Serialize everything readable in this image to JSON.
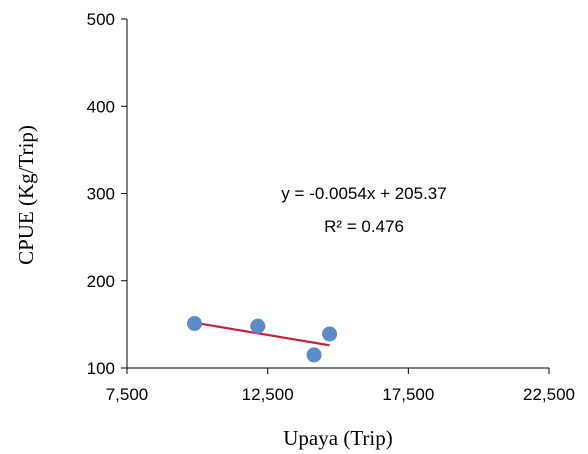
{
  "chart_data": {
    "type": "scatter",
    "title": "",
    "xlabel": "Upaya (Trip)",
    "ylabel": "CPUE (Kg/Trip)",
    "xlim": [
      7500,
      22500
    ],
    "ylim": [
      100,
      500
    ],
    "x_ticks": [
      7500,
      12500,
      17500,
      22500
    ],
    "x_tick_labels": [
      "7,500",
      "12,500",
      "17,500",
      "22,500"
    ],
    "y_ticks": [
      100,
      200,
      300,
      400,
      500
    ],
    "y_tick_labels": [
      "100",
      "200",
      "300",
      "400",
      "500"
    ],
    "grid": false,
    "legend": "none",
    "series": [
      {
        "points": [
          {
            "x": 9900,
            "y": 151
          },
          {
            "x": 12150,
            "y": 148
          },
          {
            "x": 14150,
            "y": 115
          },
          {
            "x": 14700,
            "y": 139
          }
        ],
        "color": "#5B8CC8"
      }
    ],
    "trendline": {
      "type": "linear",
      "slope": -0.0054,
      "intercept": 205.37,
      "x_range": [
        9900,
        14700
      ],
      "color": "#C0243C"
    },
    "annotations": {
      "equation": "y = -0.0054x + 205.37",
      "r_squared": "R² = 0.476"
    }
  }
}
